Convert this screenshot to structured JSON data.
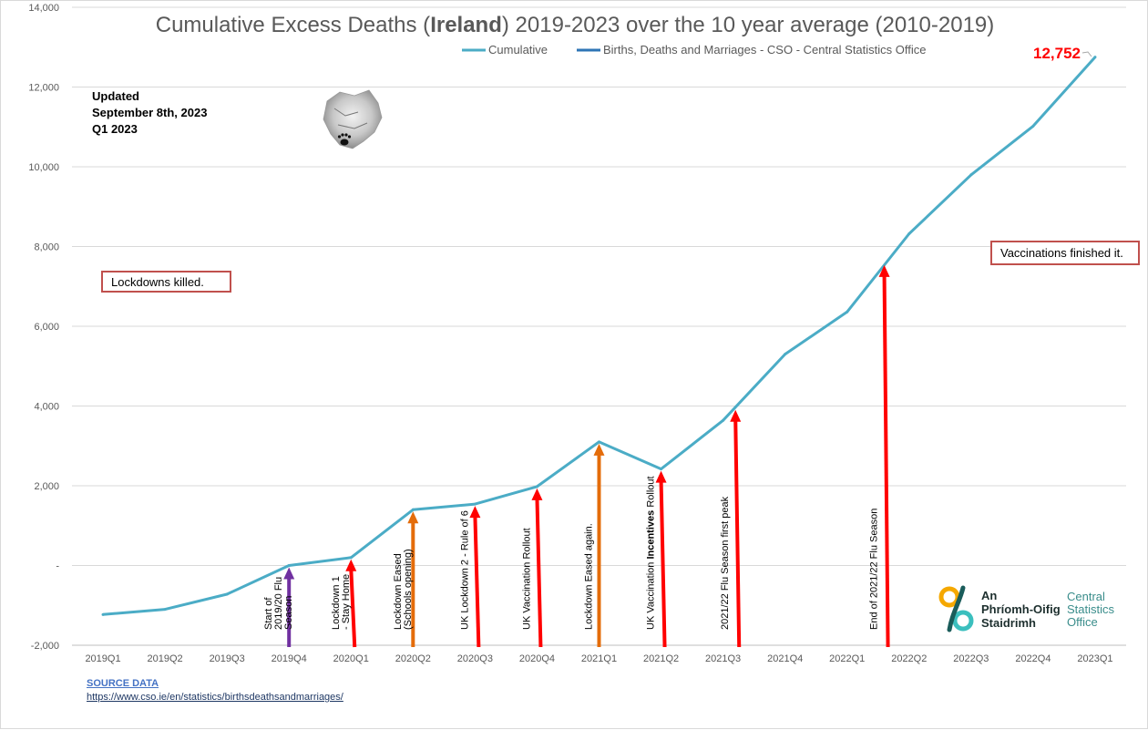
{
  "chart_data": {
    "type": "line",
    "title_parts": [
      "Cumulative Excess Deaths (",
      "Ireland",
      ") 2019-2023 over the 10 year average (2010-2019)"
    ],
    "legend": [
      "Cumulative",
      "Births, Deaths and Marriages - CSO - Central Statistics Office"
    ],
    "legend_position": "top",
    "categories": [
      "2019Q1",
      "2019Q2",
      "2019Q3",
      "2019Q4",
      "2020Q1",
      "2020Q2",
      "2020Q3",
      "2020Q4",
      "2021Q1",
      "2021Q2",
      "2021Q3",
      "2021Q4",
      "2022Q1",
      "2022Q2",
      "2022Q3",
      "2022Q4",
      "2023Q1"
    ],
    "series": [
      {
        "name": "Cumulative",
        "color": "#4bacc6",
        "values": [
          -1230,
          -1100,
          -720,
          0,
          200,
          1400,
          1540,
          1980,
          3100,
          2420,
          3640,
          5300,
          6360,
          8320,
          9800,
          11020,
          12752
        ]
      }
    ],
    "ylim": [
      -2000,
      14000
    ],
    "yticks": [
      "-2,000",
      "-",
      "2,000",
      "4,000",
      "6,000",
      "8,000",
      "10,000",
      "12,000",
      "14,000"
    ],
    "grid": true,
    "end_label": "12,752",
    "arrows": [
      {
        "label": [
          "Start of",
          "2019/20 Flu",
          "Season"
        ],
        "x": 3.0,
        "y": 0,
        "color": "#7030a0"
      },
      {
        "label": [
          "Lockdown 1",
          "- Stay Home"
        ],
        "x": 4.0,
        "y": 200,
        "color": "#ff0000"
      },
      {
        "label": [
          "Lockdown Eased",
          "(Schools opening)"
        ],
        "x": 5.0,
        "y": 1400,
        "color": "#e46c0a"
      },
      {
        "label": [
          "UK Lockdown 2 - Rule of 6"
        ],
        "x": 6.0,
        "y": 1540,
        "color": "#ff0000"
      },
      {
        "label": [
          "UK Vaccination Rollout"
        ],
        "x": 7.0,
        "y": 1980,
        "color": "#ff0000"
      },
      {
        "label": [
          "Lockdown Eased again."
        ],
        "x": 8.0,
        "y": 3100,
        "color": "#e46c0a"
      },
      {
        "label": [
          "UK Vaccination ",
          "Incentives",
          " Rollout"
        ],
        "x": 9.0,
        "y": 2420,
        "color": "#ff0000"
      },
      {
        "label": [
          "2021/22 Flu Season first peak"
        ],
        "x": 10.2,
        "y": 3950,
        "color": "#ff0000"
      },
      {
        "label": [
          "End of 2021/22 Flu Season"
        ],
        "x": 12.6,
        "y": 7580,
        "color": "#ff0000"
      }
    ]
  },
  "annotations": {
    "updated": [
      "Updated",
      "September 8th, 2023",
      "Q1 2023"
    ],
    "box_left": "Lockdowns killed.",
    "box_right": "Vaccinations finished it."
  },
  "logo": {
    "name": "cso-logo",
    "text_dark": [
      "An",
      "Phríomh-Oifig",
      "Staidrimh"
    ],
    "text_light": [
      "Central",
      "Statistics",
      "Office"
    ],
    "colors": [
      "#f5a800",
      "#3bbfbe",
      "#1a5c5a",
      "#222222"
    ]
  },
  "source": {
    "heading": "SOURCE DATA",
    "url": "https://www.cso.ie/en/statistics/birthsdeathsandmarriages/"
  }
}
